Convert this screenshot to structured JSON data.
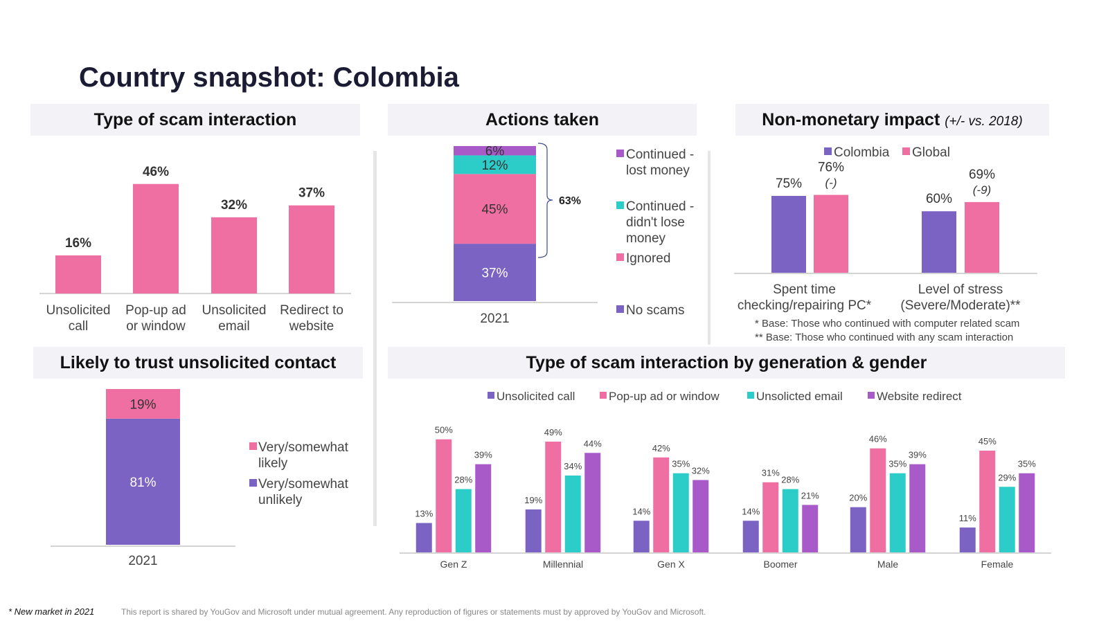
{
  "page": {
    "title": "Country snapshot: Colombia",
    "footnote": "* New market in 2021",
    "disclaimer": "This report is shared by YouGov and Microsoft under mutual agreement. Any reproduction of figures or statements must by approved by YouGov and Microsoft."
  },
  "colors": {
    "purple": "#7b63c4",
    "pink": "#f06fa3",
    "teal": "#2ccdc9",
    "violet": "#a95ac9",
    "header_bg": "#f2f2f7"
  },
  "panels": {
    "scam_type": "Type of scam interaction",
    "actions": "Actions taken",
    "non_monetary": "Non-monetary impact",
    "non_monetary_suffix": "(+/- vs. 2018)",
    "trust": "Likely to trust unsolicited contact",
    "generation": "Type of scam interaction by generation & gender"
  },
  "chart_data": [
    {
      "id": "scam_type",
      "type": "bar",
      "categories": [
        [
          "Unsolicited",
          "call"
        ],
        [
          "Pop-up ad",
          "or window"
        ],
        [
          "Unsolicited",
          "email"
        ],
        [
          "Redirect to",
          "website"
        ]
      ],
      "values": [
        16,
        46,
        32,
        37
      ],
      "labels": [
        "16%",
        "46%",
        "32%",
        "37%"
      ],
      "ylim": [
        0,
        50
      ]
    },
    {
      "id": "actions",
      "type": "bar",
      "stacked": true,
      "categories": [
        "2021"
      ],
      "series": [
        {
          "name": "No scams",
          "value": 37,
          "label": "37%",
          "color": "#7b63c4"
        },
        {
          "name": "Ignored",
          "value": 45,
          "label": "45%",
          "color": "#f06fa3"
        },
        {
          "name": "Continued - didn't lose money",
          "value": 12,
          "label": "12%",
          "color": "#2ccdc9"
        },
        {
          "name": "Continued - lost money",
          "value": 6,
          "label": "6%",
          "color": "#a95ac9"
        }
      ],
      "legend": [
        {
          "lines": [
            "Continued -",
            "lost money"
          ],
          "color": "#a95ac9"
        },
        {
          "lines": [
            "Continued -",
            "didn't lose",
            "money"
          ],
          "color": "#2ccdc9"
        },
        {
          "lines": [
            "Ignored"
          ],
          "color": "#f06fa3"
        },
        {
          "lines": [
            "No scams"
          ],
          "color": "#7b63c4"
        }
      ],
      "bracket_label": "63%"
    },
    {
      "id": "non_monetary",
      "type": "bar",
      "categories": [
        [
          "Spent time",
          "checking/repairing PC*"
        ],
        [
          "Level of stress",
          "(Severe/Moderate)**"
        ]
      ],
      "series": [
        {
          "name": "Colombia",
          "values": [
            75,
            60
          ],
          "labels": [
            "75%",
            "60%"
          ],
          "color": "#7b63c4"
        },
        {
          "name": "Global",
          "values": [
            76,
            69
          ],
          "labels": [
            "76%",
            "69%"
          ],
          "changes": [
            "(-)",
            "(-9)"
          ],
          "color": "#f06fa3"
        }
      ],
      "ylim": [
        0,
        100
      ],
      "notes": [
        "* Base: Those who continued with computer related scam",
        "** Base: Those who continued with any scam interaction"
      ]
    },
    {
      "id": "trust",
      "type": "bar",
      "stacked": true,
      "categories": [
        "2021"
      ],
      "series": [
        {
          "name": "Very/somewhat unlikely",
          "value": 81,
          "label": "81%",
          "color": "#7b63c4"
        },
        {
          "name": "Very/somewhat likely",
          "value": 19,
          "label": "19%",
          "color": "#f06fa3"
        }
      ],
      "legend": [
        {
          "lines": [
            "Very/somewhat",
            "likely"
          ],
          "color": "#f06fa3"
        },
        {
          "lines": [
            "Very/somewhat",
            "unlikely"
          ],
          "color": "#7b63c4"
        }
      ]
    },
    {
      "id": "generation",
      "type": "bar",
      "categories": [
        "Gen Z",
        "Millennial",
        "Gen X",
        "Boomer",
        "Male",
        "Female"
      ],
      "series": [
        {
          "name": "Unsolicited call",
          "values": [
            13,
            19,
            14,
            14,
            20,
            11
          ],
          "color": "#7b63c4"
        },
        {
          "name": "Pop-up ad or window",
          "values": [
            50,
            49,
            42,
            31,
            46,
            45
          ],
          "color": "#f06fa3"
        },
        {
          "name": "Unsolicted email",
          "values": [
            28,
            34,
            35,
            28,
            35,
            29
          ],
          "color": "#2ccdc9"
        },
        {
          "name": "Website redirect",
          "values": [
            39,
            44,
            32,
            21,
            39,
            35
          ],
          "color": "#a95ac9"
        }
      ],
      "ylim": [
        0,
        60
      ],
      "legend_position": "top"
    }
  ]
}
